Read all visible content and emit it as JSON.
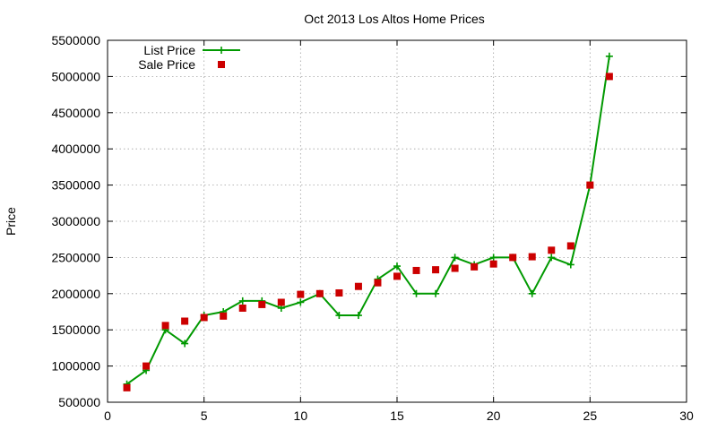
{
  "chart_data": {
    "type": "line",
    "title": "Oct 2013 Los Altos Home Prices",
    "xlabel": "",
    "ylabel": "Price",
    "xlim": [
      0,
      30
    ],
    "ylim": [
      500000,
      5500000
    ],
    "x_ticks": [
      0,
      5,
      10,
      15,
      20,
      25,
      30
    ],
    "y_ticks": [
      500000,
      1000000,
      1500000,
      2000000,
      2500000,
      3000000,
      3500000,
      4000000,
      4500000,
      5000000,
      5500000
    ],
    "grid": true,
    "legend_position": "top-left",
    "series": [
      {
        "name": "List Price",
        "style": "line-plus",
        "color": "#009900",
        "x": [
          1,
          2,
          3,
          4,
          5,
          6,
          7,
          8,
          9,
          10,
          11,
          12,
          13,
          14,
          15,
          16,
          17,
          18,
          19,
          20,
          21,
          22,
          23,
          24,
          25,
          26
        ],
        "y": [
          750000,
          940000,
          1500000,
          1310000,
          1700000,
          1750000,
          1900000,
          1900000,
          1800000,
          1880000,
          2000000,
          1700000,
          1700000,
          2200000,
          2380000,
          2000000,
          2000000,
          2500000,
          2400000,
          2500000,
          2500000,
          2000000,
          2500000,
          2400000,
          3500000,
          5280000
        ]
      },
      {
        "name": "Sale Price",
        "style": "square",
        "color": "#cc0000",
        "x": [
          1,
          2,
          3,
          4,
          5,
          6,
          7,
          8,
          9,
          10,
          11,
          12,
          13,
          14,
          15,
          16,
          17,
          18,
          19,
          20,
          21,
          22,
          23,
          24,
          25,
          26
        ],
        "y": [
          700000,
          1000000,
          1560000,
          1620000,
          1670000,
          1690000,
          1800000,
          1850000,
          1880000,
          1990000,
          2000000,
          2010000,
          2100000,
          2150000,
          2240000,
          2320000,
          2330000,
          2350000,
          2370000,
          2410000,
          2500000,
          2510000,
          2600000,
          2660000,
          3500000,
          5000000
        ]
      }
    ]
  }
}
